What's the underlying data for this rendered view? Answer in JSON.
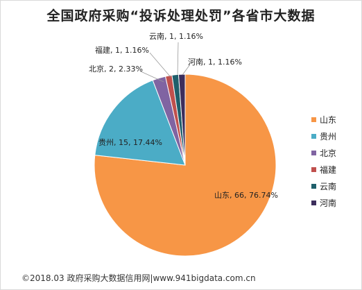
{
  "chart_data": {
    "type": "pie",
    "title": "全国政府采购“投诉处理处罚”各省市大数据",
    "categories": [
      "山东",
      "贵州",
      "北京",
      "福建",
      "云南",
      "河南"
    ],
    "values": [
      66,
      15,
      2,
      1,
      1,
      1
    ],
    "data_labels": [
      "山东, 66, 76.74%",
      "贵州, 15, 17.44%",
      "北京, 2, 2.33%",
      "福建, 1, 1.16%",
      "云南, 1, 1.16%",
      "河南, 1, 1.16%"
    ],
    "colors": [
      "#F79646",
      "#4BACC6",
      "#8064A2",
      "#C0504D",
      "#1F5F6B",
      "#3C2E5C"
    ],
    "legend_position": "right",
    "start_angle_deg": 0,
    "direction": "clockwise"
  },
  "footer": "©2018.03 政府采购大数据信用网|www.941bigdata.com.cn"
}
